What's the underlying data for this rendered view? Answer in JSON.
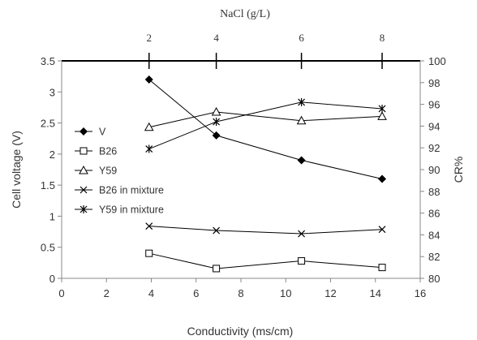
{
  "chart_data": {
    "type": "line",
    "xlabel": "Conductivity (ms/cm)",
    "ylabel": "Cell voltage (V)",
    "y2label": "CR%",
    "x2label": "NaCl (g/L)",
    "xlim": [
      0,
      16
    ],
    "ylim": [
      0,
      3.5
    ],
    "y2lim": [
      80,
      100
    ],
    "x_ticks": [
      0,
      2,
      4,
      6,
      8,
      10,
      12,
      14,
      16
    ],
    "y_ticks": [
      0,
      0.5,
      1,
      1.5,
      2,
      2.5,
      3,
      3.5
    ],
    "y2_ticks": [
      80,
      82,
      84,
      86,
      88,
      90,
      92,
      94,
      96,
      98,
      100
    ],
    "x2_ticks": [
      {
        "label": "2",
        "at": 3.9
      },
      {
        "label": "4",
        "at": 6.9
      },
      {
        "label": "6",
        "at": 10.7
      },
      {
        "label": "8",
        "at": 14.3
      }
    ],
    "x": [
      3.9,
      6.9,
      10.7,
      14.3
    ],
    "series": [
      {
        "name": "V",
        "axis": "left",
        "marker": "filled-diamond",
        "values": [
          3.2,
          2.3,
          1.9,
          1.6
        ]
      },
      {
        "name": "B26",
        "axis": "right",
        "marker": "open-square",
        "values": [
          82.3,
          80.9,
          81.6,
          81.0
        ]
      },
      {
        "name": "Y59",
        "axis": "right",
        "marker": "open-triangle",
        "values": [
          93.9,
          95.3,
          94.5,
          94.9
        ]
      },
      {
        "name": "B26 in mixture",
        "axis": "right",
        "marker": "x",
        "values": [
          84.8,
          84.4,
          84.1,
          84.5
        ]
      },
      {
        "name": "Y59 in mixture",
        "axis": "right",
        "marker": "star",
        "values": [
          91.9,
          94.4,
          96.2,
          95.6
        ]
      }
    ],
    "legend_position": "left-middle",
    "grid": false
  }
}
